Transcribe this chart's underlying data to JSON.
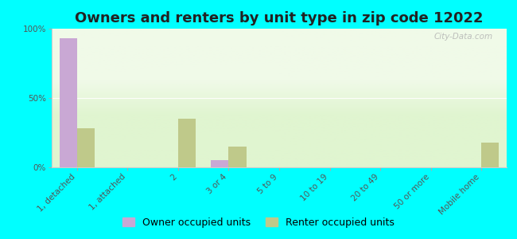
{
  "title": "Owners and renters by unit type in zip code 12022",
  "categories": [
    "1, detached",
    "1, attached",
    "2",
    "3 or 4",
    "5 to 9",
    "10 to 19",
    "20 to 49",
    "50 or more",
    "Mobile home"
  ],
  "owner_values": [
    93,
    0,
    0,
    5,
    0,
    0,
    0,
    0,
    0
  ],
  "renter_values": [
    28,
    0,
    35,
    15,
    0,
    0,
    0,
    0,
    18
  ],
  "owner_color": "#c9a8d4",
  "renter_color": "#bfc98a",
  "bg_color_top": "#f0fae8",
  "bg_color_bottom": "#e0f5d0",
  "outer_bg": "#00ffff",
  "ylim": [
    0,
    100
  ],
  "yticks": [
    0,
    50,
    100
  ],
  "ytick_labels": [
    "0%",
    "50%",
    "100%"
  ],
  "bar_width": 0.35,
  "legend_owner": "Owner occupied units",
  "legend_renter": "Renter occupied units",
  "watermark": "City-Data.com",
  "title_fontsize": 13,
  "tick_fontsize": 7.5,
  "legend_fontsize": 9
}
